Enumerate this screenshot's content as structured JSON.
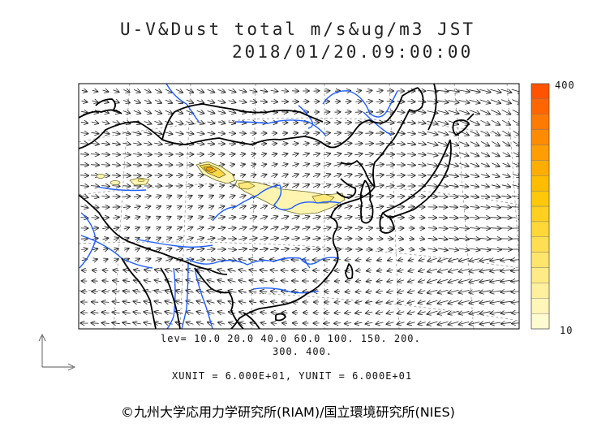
{
  "title": {
    "line1": "U-V&Dust total m/s&ug/m3 JST",
    "line2": "2018/01/20.09:00:00"
  },
  "colorbar": {
    "max_label": "400",
    "min_label": "10",
    "colors": [
      "#fffbd0",
      "#fff6b8",
      "#fff09e",
      "#ffeb85",
      "#ffe56b",
      "#ffdf52",
      "#ffd838",
      "#ffd01f",
      "#ffc808",
      "#ffbd00",
      "#ffae00",
      "#ff9e00",
      "#ff8c00",
      "#ff7a00",
      "#ff6600",
      "#ff5300"
    ]
  },
  "contour_legend": {
    "levels_line1": "lev= 10.0 20.0 40.0 60.0 100. 150. 200.",
    "levels_line2": "300. 400."
  },
  "units": "XUNIT = 6.000E+01, YUNIT = 6.000E+01",
  "credit": "©九州大学応用力学研究所(RIAM)/国立環境研究所(NIES)",
  "style": {
    "coast": "#000000",
    "river": "#1e5fff",
    "dust_fill": "#fff4b0",
    "dust_contour": "#6a6a2a"
  }
}
